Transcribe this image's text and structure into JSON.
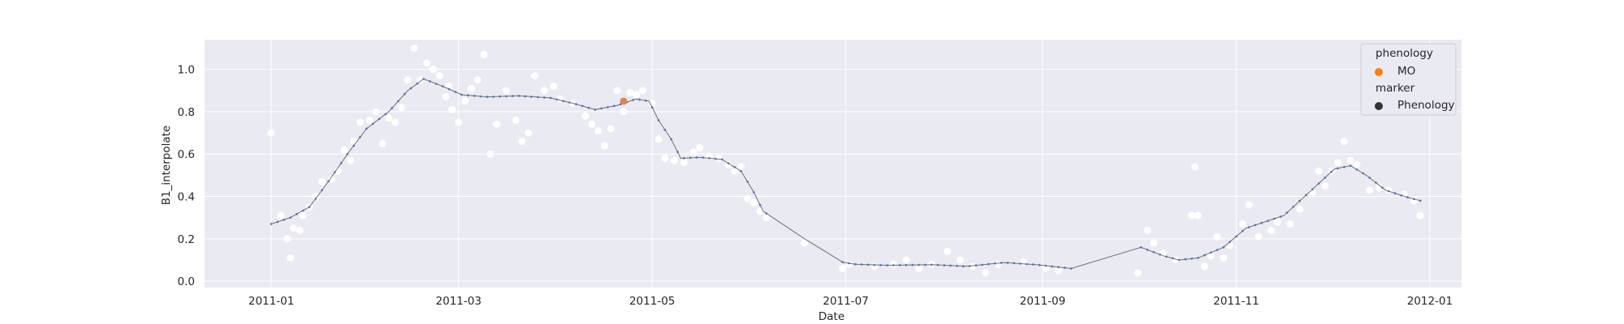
{
  "chart_data": {
    "type": "scatter",
    "xlabel": "Date",
    "ylabel": "B1_interpolate",
    "xlim": [
      "2010-12-11",
      "2012-01-11"
    ],
    "ylim": [
      -0.03,
      1.14
    ],
    "x_ticks": [
      "2011-01-01",
      "2011-03-01",
      "2011-05-01",
      "2011-07-01",
      "2011-09-01",
      "2011-11-01",
      "2012-01-01"
    ],
    "x_tick_labels": [
      "2011-01",
      "2011-03",
      "2011-05",
      "2011-07",
      "2011-09",
      "2011-11",
      "2012-01"
    ],
    "y_ticks": [
      0.0,
      0.2,
      0.4,
      0.6,
      0.8,
      1.0
    ],
    "y_tick_labels": [
      "0.0",
      "0.2",
      "0.4",
      "0.6",
      "0.8",
      "1.0"
    ],
    "grid": true,
    "background": "#eaeaf2",
    "series": [
      {
        "kind": "scatter",
        "color": "#ffffff",
        "points": [
          [
            "2011-01-01",
            0.7
          ],
          [
            "2011-01-04",
            0.31
          ],
          [
            "2011-01-06",
            0.2
          ],
          [
            "2011-01-07",
            0.11
          ],
          [
            "2011-01-08",
            0.25
          ],
          [
            "2011-01-10",
            0.24
          ],
          [
            "2011-01-11",
            0.31
          ],
          [
            "2011-01-13",
            0.35
          ],
          [
            "2011-01-15",
            0.4
          ],
          [
            "2011-01-17",
            0.47
          ],
          [
            "2011-01-20",
            0.48
          ],
          [
            "2011-01-22",
            0.52
          ],
          [
            "2011-01-24",
            0.62
          ],
          [
            "2011-01-26",
            0.57
          ],
          [
            "2011-01-27",
            0.66
          ],
          [
            "2011-01-29",
            0.75
          ],
          [
            "2011-02-01",
            0.76
          ],
          [
            "2011-02-03",
            0.8
          ],
          [
            "2011-02-05",
            0.65
          ],
          [
            "2011-02-07",
            0.77
          ],
          [
            "2011-02-09",
            0.75
          ],
          [
            "2011-02-11",
            0.82
          ],
          [
            "2011-02-13",
            0.95
          ],
          [
            "2011-02-15",
            1.1
          ],
          [
            "2011-02-17",
            0.95
          ],
          [
            "2011-02-19",
            1.03
          ],
          [
            "2011-02-21",
            1.0
          ],
          [
            "2011-02-23",
            0.97
          ],
          [
            "2011-02-25",
            0.87
          ],
          [
            "2011-02-26",
            0.92
          ],
          [
            "2011-02-27",
            0.81
          ],
          [
            "2011-03-01",
            0.75
          ],
          [
            "2011-03-03",
            0.85
          ],
          [
            "2011-03-05",
            0.91
          ],
          [
            "2011-03-07",
            0.95
          ],
          [
            "2011-03-09",
            1.07
          ],
          [
            "2011-03-11",
            0.6
          ],
          [
            "2011-03-13",
            0.74
          ],
          [
            "2011-03-16",
            0.9
          ],
          [
            "2011-03-19",
            0.76
          ],
          [
            "2011-03-21",
            0.66
          ],
          [
            "2011-03-23",
            0.7
          ],
          [
            "2011-03-25",
            0.97
          ],
          [
            "2011-03-28",
            0.9
          ],
          [
            "2011-03-31",
            0.92
          ],
          [
            "2011-04-02",
            0.86
          ],
          [
            "2011-04-06",
            0.84
          ],
          [
            "2011-04-10",
            0.78
          ],
          [
            "2011-04-12",
            0.74
          ],
          [
            "2011-04-14",
            0.71
          ],
          [
            "2011-04-16",
            0.64
          ],
          [
            "2011-04-18",
            0.72
          ],
          [
            "2011-04-20",
            0.9
          ],
          [
            "2011-04-22",
            0.8
          ],
          [
            "2011-04-24",
            0.89
          ],
          [
            "2011-04-26",
            0.88
          ],
          [
            "2011-04-28",
            0.9
          ],
          [
            "2011-05-01",
            0.84
          ],
          [
            "2011-05-03",
            0.67
          ],
          [
            "2011-05-05",
            0.58
          ],
          [
            "2011-05-08",
            0.57
          ],
          [
            "2011-05-11",
            0.56
          ],
          [
            "2011-05-14",
            0.61
          ],
          [
            "2011-05-16",
            0.63
          ],
          [
            "2011-05-19",
            0.59
          ],
          [
            "2011-05-22",
            0.58
          ],
          [
            "2011-05-25",
            0.55
          ],
          [
            "2011-05-27",
            0.52
          ],
          [
            "2011-05-29",
            0.54
          ],
          [
            "2011-05-31",
            0.39
          ],
          [
            "2011-06-02",
            0.37
          ],
          [
            "2011-06-04",
            0.33
          ],
          [
            "2011-06-06",
            0.3
          ],
          [
            "2011-06-18",
            0.18
          ],
          [
            "2011-06-30",
            0.06
          ],
          [
            "2011-07-02",
            0.08
          ],
          [
            "2011-07-10",
            0.07
          ],
          [
            "2011-07-16",
            0.08
          ],
          [
            "2011-07-20",
            0.1
          ],
          [
            "2011-07-24",
            0.06
          ],
          [
            "2011-07-28",
            0.08
          ],
          [
            "2011-08-02",
            0.14
          ],
          [
            "2011-08-06",
            0.1
          ],
          [
            "2011-08-10",
            0.07
          ],
          [
            "2011-08-14",
            0.04
          ],
          [
            "2011-08-18",
            0.08
          ],
          [
            "2011-08-26",
            0.09
          ],
          [
            "2011-09-02",
            0.06
          ],
          [
            "2011-09-06",
            0.05
          ],
          [
            "2011-10-01",
            0.04
          ],
          [
            "2011-10-04",
            0.24
          ],
          [
            "2011-10-06",
            0.18
          ],
          [
            "2011-10-09",
            0.13
          ],
          [
            "2011-10-13",
            0.1
          ],
          [
            "2011-10-18",
            0.31
          ],
          [
            "2011-10-19",
            0.54
          ],
          [
            "2011-10-20",
            0.31
          ],
          [
            "2011-10-22",
            0.07
          ],
          [
            "2011-10-24",
            0.12
          ],
          [
            "2011-10-26",
            0.21
          ],
          [
            "2011-10-28",
            0.11
          ],
          [
            "2011-10-30",
            0.17
          ],
          [
            "2011-11-03",
            0.27
          ],
          [
            "2011-11-05",
            0.36
          ],
          [
            "2011-11-08",
            0.21
          ],
          [
            "2011-11-12",
            0.24
          ],
          [
            "2011-11-14",
            0.28
          ],
          [
            "2011-11-18",
            0.27
          ],
          [
            "2011-11-21",
            0.34
          ],
          [
            "2011-11-25",
            0.42
          ],
          [
            "2011-11-27",
            0.52
          ],
          [
            "2011-11-29",
            0.45
          ],
          [
            "2011-12-01",
            0.52
          ],
          [
            "2011-12-03",
            0.56
          ],
          [
            "2011-12-05",
            0.66
          ],
          [
            "2011-12-07",
            0.57
          ],
          [
            "2011-12-09",
            0.55
          ],
          [
            "2011-12-13",
            0.43
          ],
          [
            "2011-12-16",
            0.44
          ],
          [
            "2011-12-19",
            0.43
          ],
          [
            "2011-12-24",
            0.41
          ],
          [
            "2011-12-27",
            0.38
          ],
          [
            "2011-12-29",
            0.31
          ]
        ]
      },
      {
        "kind": "line",
        "name": "B1_interpolate",
        "color": "#4c72b0",
        "points": [
          [
            "2011-01-01",
            0.27
          ],
          [
            "2011-01-07",
            0.3
          ],
          [
            "2011-01-13",
            0.35
          ],
          [
            "2011-01-18",
            0.45
          ],
          [
            "2011-01-25",
            0.6
          ],
          [
            "2011-01-31",
            0.72
          ],
          [
            "2011-02-07",
            0.8
          ],
          [
            "2011-02-13",
            0.9
          ],
          [
            "2011-02-18",
            0.955
          ],
          [
            "2011-02-24",
            0.92
          ],
          [
            "2011-03-02",
            0.88
          ],
          [
            "2011-03-10",
            0.87
          ],
          [
            "2011-03-20",
            0.875
          ],
          [
            "2011-03-30",
            0.865
          ],
          [
            "2011-04-06",
            0.84
          ],
          [
            "2011-04-13",
            0.81
          ],
          [
            "2011-04-20",
            0.83
          ],
          [
            "2011-04-26",
            0.86
          ],
          [
            "2011-04-30",
            0.85
          ],
          [
            "2011-05-03",
            0.76
          ],
          [
            "2011-05-07",
            0.67
          ],
          [
            "2011-05-10",
            0.58
          ],
          [
            "2011-05-16",
            0.585
          ],
          [
            "2011-05-23",
            0.575
          ],
          [
            "2011-05-29",
            0.52
          ],
          [
            "2011-06-02",
            0.42
          ],
          [
            "2011-06-05",
            0.33
          ],
          [
            "2011-06-18",
            0.2
          ],
          [
            "2011-06-30",
            0.09
          ],
          [
            "2011-07-04",
            0.08
          ],
          [
            "2011-07-14",
            0.075
          ],
          [
            "2011-07-28",
            0.078
          ],
          [
            "2011-08-08",
            0.07
          ],
          [
            "2011-08-20",
            0.088
          ],
          [
            "2011-08-30",
            0.078
          ],
          [
            "2011-09-10",
            0.06
          ],
          [
            "2011-10-02",
            0.16
          ],
          [
            "2011-10-09",
            0.12
          ],
          [
            "2011-10-14",
            0.1
          ],
          [
            "2011-10-20",
            0.11
          ],
          [
            "2011-10-28",
            0.16
          ],
          [
            "2011-11-04",
            0.25
          ],
          [
            "2011-11-10",
            0.28
          ],
          [
            "2011-11-16",
            0.31
          ],
          [
            "2011-11-24",
            0.42
          ],
          [
            "2011-12-02",
            0.53
          ],
          [
            "2011-12-07",
            0.545
          ],
          [
            "2011-12-12",
            0.5
          ],
          [
            "2011-12-18",
            0.43
          ],
          [
            "2011-12-24",
            0.4
          ],
          [
            "2011-12-29",
            0.38
          ]
        ]
      },
      {
        "kind": "scatter",
        "name": "MO",
        "color": "#dd8452",
        "points": [
          [
            "2011-04-22",
            0.85
          ]
        ]
      }
    ],
    "legend": {
      "placement": "top-right",
      "title_1": "phenology",
      "entry_1": "MO",
      "entry_1_color": "#ff7f0e",
      "title_2": "marker",
      "entry_2": "Phenology",
      "entry_2_color": "#333333"
    }
  }
}
